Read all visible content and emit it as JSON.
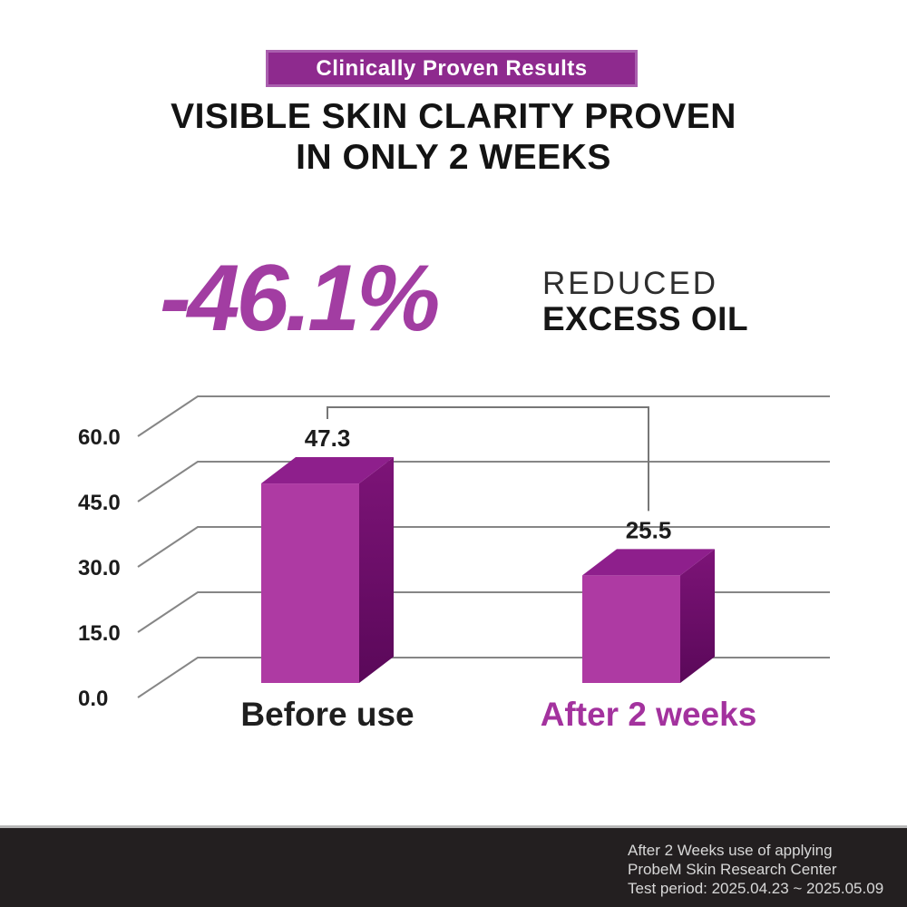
{
  "badge": {
    "label": "Clinically Proven Results"
  },
  "headline": {
    "line1": "VISIBLE SKIN CLARITY PROVEN",
    "line2": "IN ONLY 2 WEEKS"
  },
  "stat": {
    "value": "-46.1%",
    "caption_line1": "REDUCED",
    "caption_line2": "EXCESS OIL"
  },
  "chart_data": {
    "type": "bar",
    "style": "3d",
    "categories": [
      "Before use",
      "After 2 weeks"
    ],
    "values": [
      47.3,
      25.5
    ],
    "value_labels": [
      "47.3",
      "25.5"
    ],
    "y_ticks": [
      "60.0",
      "45.0",
      "30.0",
      "15.0",
      "0.0"
    ],
    "ylim": [
      0,
      60
    ],
    "grid": true,
    "legend": false,
    "bar_color_front": "#ae3aa3",
    "bar_color_top": "#8e1f8c",
    "bar_color_side_top": "#7d1478",
    "bar_color_side_bottom": "#5a0859",
    "grid_color": "#868686",
    "bracket_color": "#777777",
    "category_colors": [
      "#1f1f1f",
      "#a3329e"
    ]
  },
  "footer": {
    "line1": "After 2 Weeks use of applying",
    "line2": "ProbeM Skin Research Center",
    "line3": "Test period: 2025.04.23 ~ 2025.05.09"
  },
  "colors": {
    "badge_purple": "#8e2a8e",
    "stat_purple": "#a23da2",
    "footer_bg": "#231f20",
    "footer_text": "#d8d8d8"
  }
}
